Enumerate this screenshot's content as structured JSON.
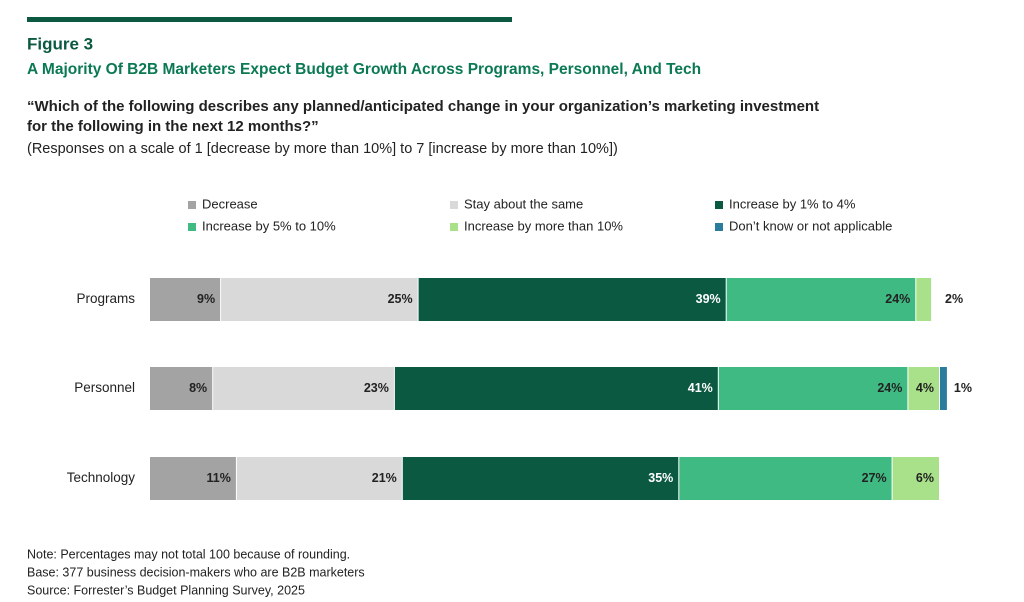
{
  "chart_data": {
    "type": "bar",
    "orientation": "horizontal",
    "stacked": true,
    "figure_label": "Figure 3",
    "title": "A Majority Of B2B Marketers Expect Budget Growth Across Programs, Personnel, And Tech",
    "question": [
      "“Which of the following describes any planned/anticipated change in your organization’s marketing investment",
      "for the following in the next 12 months?”"
    ],
    "subtitle": "(Responses on a scale of 1 [decrease by more than 10%] to 7 [increase by more than 10%])",
    "categories": [
      "Programs",
      "Personnel",
      "Technology"
    ],
    "series": [
      {
        "name": "Decrease",
        "color": "#a3a3a3",
        "values": [
          9,
          8,
          11
        ],
        "value_labels": [
          "9%",
          "8%",
          "11%"
        ]
      },
      {
        "name": "Stay about the same",
        "color": "#d9d9d9",
        "values": [
          25,
          23,
          21
        ],
        "value_labels": [
          "25%",
          "23%",
          "21%"
        ]
      },
      {
        "name": "Increase by 1% to 4%",
        "color": "#0b5940",
        "values": [
          39,
          41,
          35
        ],
        "value_labels": [
          "39%",
          "41%",
          "35%"
        ]
      },
      {
        "name": "Increase by 5% to 10%",
        "color": "#3fba82",
        "values": [
          24,
          24,
          27
        ],
        "value_labels": [
          "24%",
          "24%",
          "27%"
        ]
      },
      {
        "name": "Increase by more than 10%",
        "color": "#a9e08a",
        "values": [
          2,
          4,
          6
        ],
        "value_labels": [
          "2%",
          "4%",
          "6%"
        ]
      },
      {
        "name": "Don’t know or not applicable",
        "color": "#2a7c9c",
        "values": [
          null,
          1,
          null
        ],
        "value_labels": [
          null,
          "1%",
          null
        ]
      }
    ],
    "notes": [
      "Note: Percentages may not total 100 because of rounding.",
      "Base: 377 business decision-makers who are B2B marketers",
      "Source: Forrester’s Budget Planning Survey, 2025"
    ]
  }
}
